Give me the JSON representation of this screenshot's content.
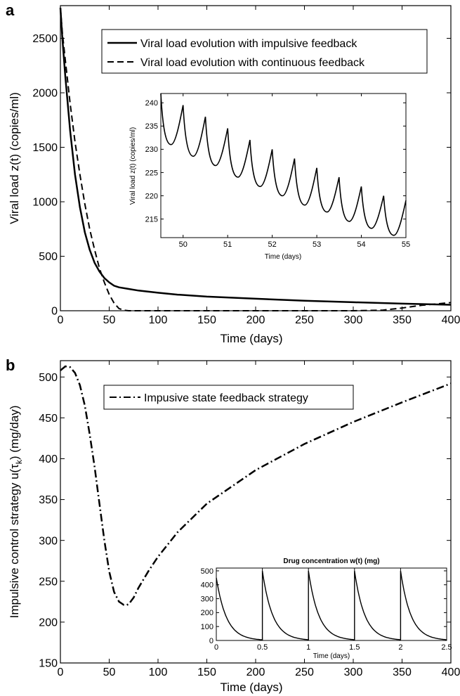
{
  "chart_data": [
    {
      "panel": "a",
      "type": "line",
      "xlabel": "Time (days)",
      "ylabel": "Viral load z(t) (copies/ml)",
      "xlim": [
        0,
        400
      ],
      "ylim": [
        0,
        2800
      ],
      "xticks": [
        0,
        50,
        100,
        150,
        200,
        250,
        300,
        350,
        400
      ],
      "yticks": [
        0,
        500,
        1000,
        1500,
        2000,
        2500
      ],
      "legend_position": "top-right",
      "series": [
        {
          "name": "Viral load evolution with impulsive feedback",
          "style": "solid",
          "x": [
            0,
            2,
            5,
            10,
            15,
            20,
            25,
            30,
            35,
            40,
            45,
            50,
            55,
            60,
            70,
            80,
            100,
            120,
            150,
            200,
            250,
            300,
            350,
            400
          ],
          "y": [
            2780,
            2500,
            2150,
            1650,
            1250,
            950,
            720,
            560,
            440,
            360,
            300,
            260,
            230,
            215,
            200,
            185,
            165,
            148,
            130,
            110,
            92,
            78,
            65,
            55
          ]
        },
        {
          "name": "Viral load evolution with continuous feedback",
          "style": "dashed",
          "x": [
            0,
            2,
            5,
            10,
            15,
            20,
            25,
            30,
            35,
            40,
            45,
            50,
            55,
            60,
            65,
            70,
            100,
            200,
            300,
            330,
            350,
            370,
            400
          ],
          "y": [
            2780,
            2550,
            2300,
            1900,
            1550,
            1250,
            980,
            750,
            560,
            390,
            260,
            150,
            70,
            20,
            5,
            0,
            0,
            0,
            0,
            5,
            25,
            50,
            75
          ]
        }
      ],
      "inset": {
        "xlabel": "Time (days)",
        "ylabel": "Viral load z(t) (copies/ml)",
        "xlim": [
          49.5,
          55
        ],
        "ylim": [
          211,
          242
        ],
        "xticks": [
          50,
          51,
          52,
          53,
          54,
          55
        ],
        "yticks": [
          215,
          220,
          225,
          230,
          235,
          240
        ],
        "peaks": [
          {
            "t": 49.5,
            "v": 242
          },
          {
            "t": 50.0,
            "v": 239.5
          },
          {
            "t": 50.5,
            "v": 237
          },
          {
            "t": 51.0,
            "v": 234.5
          },
          {
            "t": 51.5,
            "v": 232
          },
          {
            "t": 52.0,
            "v": 230
          },
          {
            "t": 52.5,
            "v": 228
          },
          {
            "t": 53.0,
            "v": 226
          },
          {
            "t": 53.5,
            "v": 224
          },
          {
            "t": 54.0,
            "v": 222
          },
          {
            "t": 54.5,
            "v": 220
          }
        ],
        "troughs": [
          {
            "t": 49.73,
            "v": 231
          },
          {
            "t": 50.23,
            "v": 228.5
          },
          {
            "t": 50.73,
            "v": 226.5
          },
          {
            "t": 51.23,
            "v": 224
          },
          {
            "t": 51.73,
            "v": 222
          },
          {
            "t": 52.23,
            "v": 220
          },
          {
            "t": 52.73,
            "v": 218
          },
          {
            "t": 53.23,
            "v": 216.5
          },
          {
            "t": 53.73,
            "v": 214.5
          },
          {
            "t": 54.23,
            "v": 213
          },
          {
            "t": 54.73,
            "v": 211.5
          }
        ],
        "end": {
          "t": 55,
          "v": 219
        }
      }
    },
    {
      "panel": "b",
      "type": "line",
      "xlabel": "Time (days)",
      "ylabel": "Impulsive control strategy u(τk) (mg/day)",
      "ylabel_main": "Impulsive control strategy u(τ",
      "ylabel_sub": "k",
      "ylabel_tail": ") (mg/day)",
      "xlim": [
        0,
        400
      ],
      "ylim": [
        150,
        520
      ],
      "xticks": [
        0,
        50,
        100,
        150,
        200,
        250,
        300,
        350,
        400
      ],
      "yticks": [
        150,
        200,
        250,
        300,
        350,
        400,
        450,
        500
      ],
      "legend_position": "top-left",
      "series": [
        {
          "name": "Impusive state feedback strategy",
          "style": "dashdot",
          "x": [
            0,
            5,
            10,
            15,
            20,
            25,
            30,
            35,
            40,
            45,
            50,
            55,
            60,
            65,
            68,
            70,
            75,
            80,
            90,
            100,
            120,
            150,
            200,
            250,
            300,
            350,
            400
          ],
          "y": [
            508,
            513,
            512,
            505,
            490,
            465,
            430,
            390,
            345,
            300,
            262,
            237,
            225,
            221,
            221,
            222,
            230,
            242,
            262,
            280,
            310,
            345,
            386,
            418,
            445,
            469,
            492
          ]
        }
      ],
      "inset": {
        "title": "Drug concentration w(t) (mg)",
        "xlabel": "Time (days)",
        "xlim": [
          0,
          2.5
        ],
        "ylim": [
          0,
          520
        ],
        "xticks": [
          0,
          0.5,
          1,
          1.5,
          2,
          2.5
        ],
        "xtick_labels": [
          "0",
          "0.5",
          "1",
          "1.5",
          "2",
          "2.5"
        ],
        "yticks": [
          0,
          100,
          200,
          300,
          400,
          500
        ],
        "dose_times": [
          0,
          0.5,
          1,
          1.5,
          2
        ],
        "peak": 500,
        "initial_value": 450,
        "decay_rate": 9
      }
    }
  ]
}
